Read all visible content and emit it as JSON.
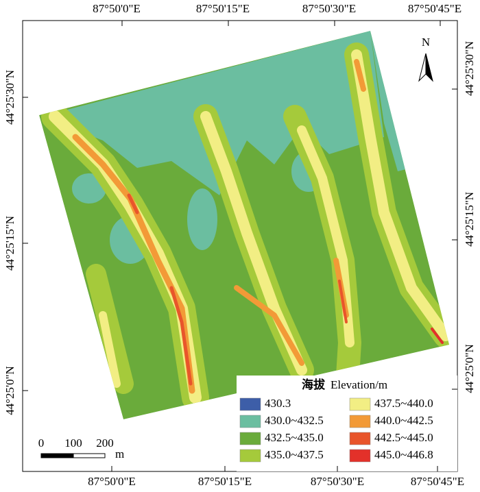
{
  "map": {
    "top_labels": [
      "87°50'0\"E",
      "87°50'15\"E",
      "87°50'30\"E",
      "87°50'45\"E"
    ],
    "bottom_labels": [
      "87°50'0\"E",
      "87°50'15\"E",
      "87°50'30\"E",
      "87°50'45\"E"
    ],
    "left_labels": [
      "44°25'30\"N",
      "44°25'15\"N",
      "44°25'0\"N"
    ],
    "right_labels": [
      "44°25'30\"N",
      "44°25'15\"N",
      "44°25'0\"N"
    ],
    "north": "N",
    "scale_bar": {
      "labels": [
        "0",
        "100",
        "200"
      ],
      "unit": "m"
    },
    "legend": {
      "title_cn": "海拔",
      "title_en": "Elevation/m",
      "items": [
        {
          "label": "430.3",
          "color": "#3d5ea8"
        },
        {
          "label": "430.0~432.5",
          "color": "#6bbea0"
        },
        {
          "label": "432.5~435.0",
          "color": "#6aab3b"
        },
        {
          "label": "435.0~437.5",
          "color": "#a5ca3b"
        },
        {
          "label": "437.5~440.0",
          "color": "#f2ee84"
        },
        {
          "label": "440.0~442.5",
          "color": "#f29a37"
        },
        {
          "label": "442.5~445.0",
          "color": "#e8552b"
        },
        {
          "label": "445.0~446.8",
          "color": "#e3312a"
        }
      ]
    }
  }
}
